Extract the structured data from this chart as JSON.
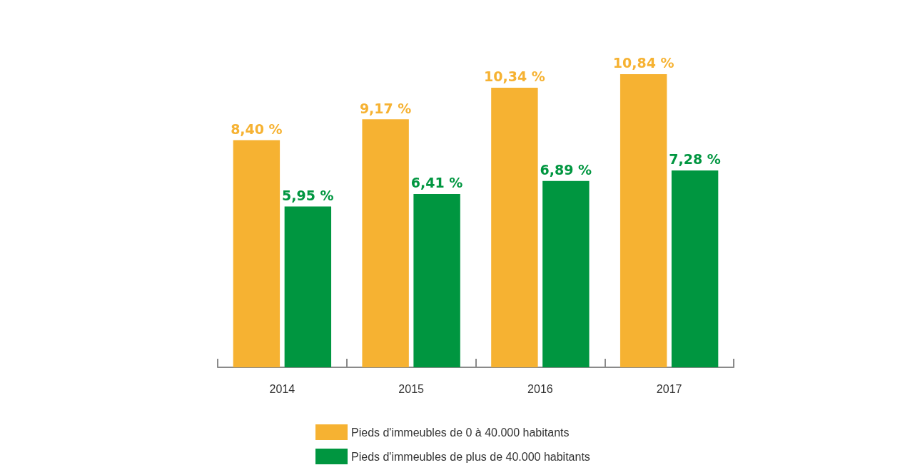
{
  "chart_data": {
    "type": "bar",
    "categories": [
      "2014",
      "2015",
      "2016",
      "2017"
    ],
    "series": [
      {
        "name": "Pieds d'immeubles de 0 à 40.000 habitants",
        "color": "#f6b232",
        "values": [
          8.4,
          9.17,
          10.34,
          10.84
        ],
        "value_labels": [
          "8,40 %",
          "9,17 %",
          "10,34 %",
          "10,84 %"
        ]
      },
      {
        "name": "Pieds d'immeubles de plus de 40.000 habitants",
        "color": "#009640",
        "values": [
          5.95,
          6.41,
          6.89,
          7.28
        ],
        "value_labels": [
          "5,95 %",
          "6,41 %",
          "6,89 %",
          "7,28 %"
        ]
      }
    ],
    "tick_labels": "x",
    "legend": "bottom"
  }
}
